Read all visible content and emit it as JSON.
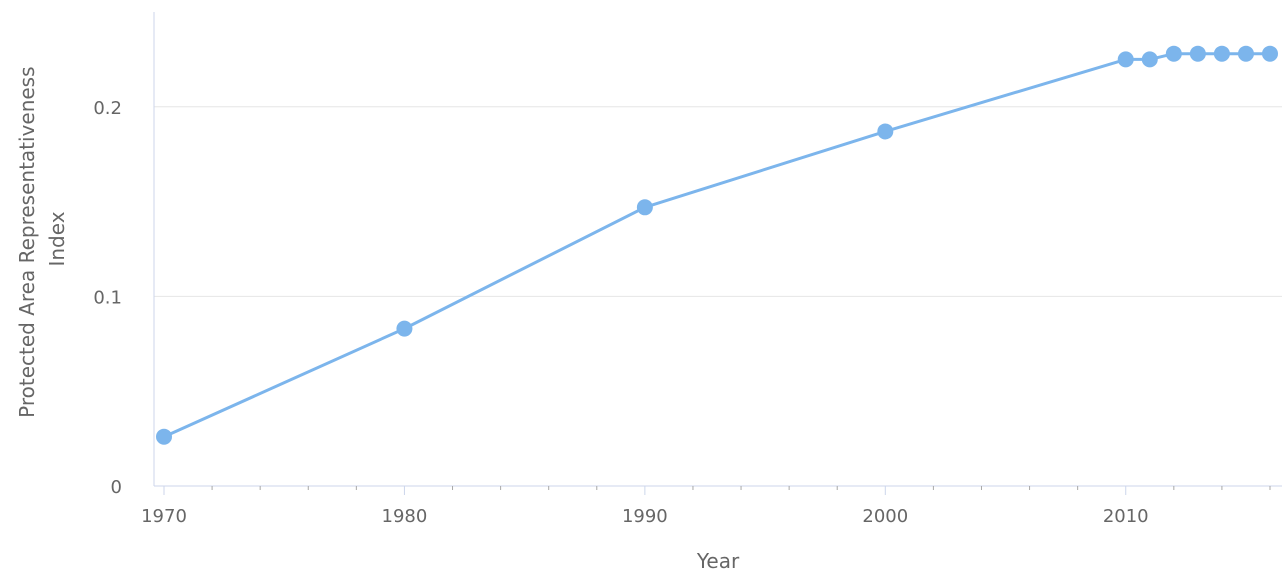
{
  "chart_data": {
    "type": "line",
    "title": "",
    "xlabel": "Year",
    "ylabel_lines": [
      "Protected Area Representativeness",
      "Index"
    ],
    "xlim": [
      1970,
      2016
    ],
    "ylim": [
      0,
      0.25
    ],
    "x_ticks": [
      1970,
      1980,
      1990,
      2000,
      2010
    ],
    "x_tick_labels": [
      "1970",
      "1980",
      "1990",
      "2000",
      "2010"
    ],
    "y_ticks": [
      0,
      0.1,
      0.2
    ],
    "y_tick_labels": [
      "0",
      "0.1",
      "0.2"
    ],
    "grid": "horizontal",
    "legend": "none",
    "series": [
      {
        "color": "#7cb5ec",
        "x": [
          1970,
          1980,
          1990,
          2000,
          2010,
          2011,
          2012,
          2013,
          2014,
          2015,
          2016
        ],
        "y": [
          0.026,
          0.083,
          0.147,
          0.187,
          0.225,
          0.225,
          0.228,
          0.228,
          0.228,
          0.228,
          0.228
        ]
      }
    ]
  }
}
